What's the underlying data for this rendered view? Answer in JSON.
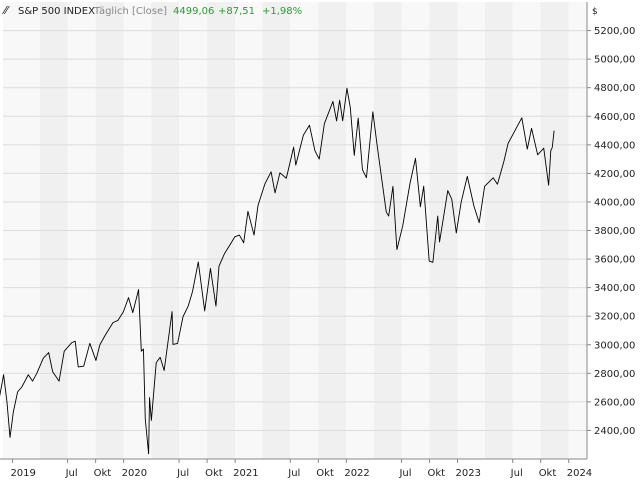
{
  "header": {
    "symbol": "S&P 500 INDEX",
    "interval": "Täglich [Close]",
    "last": "4499,06",
    "change": "+87,51",
    "change_pct": "+1,98%"
  },
  "colors": {
    "line": "#000000",
    "change_positive": "#22a22a",
    "band_dark": "#f0f0f0",
    "band_light": "#f8f8f8",
    "grid": "#dcdcdc",
    "axis": "#888888",
    "text": "#222222"
  },
  "chart_data": {
    "type": "line",
    "title": "S&P 500 INDEX",
    "subtitle": "Täglich [Close]",
    "xlabel": "",
    "ylabel": "",
    "y_unit": "$",
    "grid": true,
    "legend": "none",
    "x_range": [
      "2018-12-01",
      "2024-03-01"
    ],
    "ylim": [
      2200,
      5400
    ],
    "y_ticks": [
      2400,
      2600,
      2800,
      3000,
      3200,
      3400,
      3600,
      3800,
      4000,
      4200,
      4400,
      4600,
      4800,
      5000,
      5200
    ],
    "y_tick_labels": [
      "2400,00",
      "2600,00",
      "2800,00",
      "3000,00",
      "3200,00",
      "3400,00",
      "3600,00",
      "3800,00",
      "4000,00",
      "4200,00",
      "4400,00",
      "4600,00",
      "4800,00",
      "5000,00",
      "5200,00"
    ],
    "x_ticks": [
      {
        "date": "2019-01-01",
        "label": "2019"
      },
      {
        "date": "2019-07-01",
        "label": "Jul"
      },
      {
        "date": "2019-10-01",
        "label": "Okt"
      },
      {
        "date": "2020-01-01",
        "label": "2020"
      },
      {
        "date": "2020-07-01",
        "label": "Jul"
      },
      {
        "date": "2020-10-01",
        "label": "Okt"
      },
      {
        "date": "2021-01-01",
        "label": "2021"
      },
      {
        "date": "2021-07-01",
        "label": "Jul"
      },
      {
        "date": "2021-10-01",
        "label": "Okt"
      },
      {
        "date": "2022-01-01",
        "label": "2022"
      },
      {
        "date": "2022-07-01",
        "label": "Jul"
      },
      {
        "date": "2022-10-01",
        "label": "Okt"
      },
      {
        "date": "2023-01-01",
        "label": "2023"
      },
      {
        "date": "2023-07-01",
        "label": "Jul"
      },
      {
        "date": "2023-10-01",
        "label": "Okt"
      },
      {
        "date": "2024-01-01",
        "label": "2024"
      }
    ],
    "band_boundaries": [
      "2018-12-01",
      "2019-04-01",
      "2019-07-01",
      "2019-10-01",
      "2020-01-01",
      "2020-04-01",
      "2020-07-01",
      "2020-10-01",
      "2021-01-01",
      "2021-04-01",
      "2021-07-01",
      "2021-10-01",
      "2022-01-01",
      "2022-04-01",
      "2022-07-01",
      "2022-10-01",
      "2023-01-01",
      "2023-04-01",
      "2023-07-01",
      "2023-10-01",
      "2024-01-01",
      "2024-03-01"
    ],
    "series": [
      {
        "points": [
          [
            "2018-10-01",
            2920
          ],
          [
            "2018-10-10",
            2790
          ],
          [
            "2018-10-24",
            2660
          ],
          [
            "2018-11-05",
            2740
          ],
          [
            "2018-11-20",
            2640
          ],
          [
            "2018-12-03",
            2790
          ],
          [
            "2018-12-14",
            2600
          ],
          [
            "2018-12-24",
            2351
          ],
          [
            "2019-01-04",
            2530
          ],
          [
            "2019-01-18",
            2670
          ],
          [
            "2019-02-01",
            2705
          ],
          [
            "2019-02-22",
            2790
          ],
          [
            "2019-03-08",
            2745
          ],
          [
            "2019-03-22",
            2800
          ],
          [
            "2019-04-12",
            2905
          ],
          [
            "2019-04-30",
            2945
          ],
          [
            "2019-05-13",
            2811
          ],
          [
            "2019-06-03",
            2745
          ],
          [
            "2019-06-20",
            2955
          ],
          [
            "2019-07-15",
            3015
          ],
          [
            "2019-07-26",
            3025
          ],
          [
            "2019-08-05",
            2845
          ],
          [
            "2019-08-23",
            2850
          ],
          [
            "2019-09-12",
            3010
          ],
          [
            "2019-10-02",
            2890
          ],
          [
            "2019-10-15",
            3000
          ],
          [
            "2019-11-01",
            3065
          ],
          [
            "2019-11-27",
            3155
          ],
          [
            "2019-12-13",
            3170
          ],
          [
            "2019-12-31",
            3230
          ],
          [
            "2020-01-17",
            3330
          ],
          [
            "2020-01-31",
            3225
          ],
          [
            "2020-02-19",
            3386
          ],
          [
            "2020-02-28",
            2955
          ],
          [
            "2020-03-06",
            2970
          ],
          [
            "2020-03-12",
            2480
          ],
          [
            "2020-03-16",
            2390
          ],
          [
            "2020-03-23",
            2237
          ],
          [
            "2020-03-26",
            2630
          ],
          [
            "2020-04-01",
            2470
          ],
          [
            "2020-04-17",
            2875
          ],
          [
            "2020-04-30",
            2912
          ],
          [
            "2020-05-13",
            2820
          ],
          [
            "2020-06-08",
            3232
          ],
          [
            "2020-06-11",
            3002
          ],
          [
            "2020-06-26",
            3009
          ],
          [
            "2020-07-14",
            3197
          ],
          [
            "2020-07-31",
            3271
          ],
          [
            "2020-08-14",
            3372
          ],
          [
            "2020-09-02",
            3580
          ],
          [
            "2020-09-23",
            3237
          ],
          [
            "2020-10-12",
            3534
          ],
          [
            "2020-10-30",
            3270
          ],
          [
            "2020-11-09",
            3550
          ],
          [
            "2020-11-27",
            3638
          ],
          [
            "2020-12-18",
            3710
          ],
          [
            "2020-12-31",
            3756
          ],
          [
            "2021-01-15",
            3768
          ],
          [
            "2021-01-29",
            3714
          ],
          [
            "2021-02-12",
            3934
          ],
          [
            "2021-03-04",
            3768
          ],
          [
            "2021-03-17",
            3975
          ],
          [
            "2021-04-09",
            4128
          ],
          [
            "2021-04-29",
            4211
          ],
          [
            "2021-05-12",
            4063
          ],
          [
            "2021-05-28",
            4204
          ],
          [
            "2021-06-18",
            4166
          ],
          [
            "2021-07-12",
            4384
          ],
          [
            "2021-07-19",
            4258
          ],
          [
            "2021-08-13",
            4468
          ],
          [
            "2021-09-02",
            4537
          ],
          [
            "2021-09-20",
            4358
          ],
          [
            "2021-10-04",
            4300
          ],
          [
            "2021-10-21",
            4549
          ],
          [
            "2021-11-18",
            4704
          ],
          [
            "2021-11-30",
            4567
          ],
          [
            "2021-12-10",
            4712
          ],
          [
            "2021-12-20",
            4568
          ],
          [
            "2022-01-03",
            4796
          ],
          [
            "2022-01-14",
            4662
          ],
          [
            "2022-01-27",
            4326
          ],
          [
            "2022-02-09",
            4587
          ],
          [
            "2022-02-23",
            4225
          ],
          [
            "2022-03-08",
            4170
          ],
          [
            "2022-03-29",
            4631
          ],
          [
            "2022-04-12",
            4397
          ],
          [
            "2022-04-29",
            4132
          ],
          [
            "2022-05-12",
            3930
          ],
          [
            "2022-05-20",
            3901
          ],
          [
            "2022-06-03",
            4109
          ],
          [
            "2022-06-16",
            3667
          ],
          [
            "2022-07-05",
            3831
          ],
          [
            "2022-07-29",
            4130
          ],
          [
            "2022-08-16",
            4305
          ],
          [
            "2022-09-01",
            3966
          ],
          [
            "2022-09-12",
            4110
          ],
          [
            "2022-09-30",
            3586
          ],
          [
            "2022-10-12",
            3577
          ],
          [
            "2022-10-28",
            3901
          ],
          [
            "2022-11-03",
            3720
          ],
          [
            "2022-11-30",
            4080
          ],
          [
            "2022-12-13",
            4019
          ],
          [
            "2022-12-28",
            3783
          ],
          [
            "2023-01-13",
            3999
          ],
          [
            "2023-02-02",
            4179
          ],
          [
            "2023-02-24",
            3970
          ],
          [
            "2023-03-13",
            3855
          ],
          [
            "2023-03-31",
            4109
          ],
          [
            "2023-04-28",
            4169
          ],
          [
            "2023-05-12",
            4124
          ],
          [
            "2023-06-02",
            4282
          ],
          [
            "2023-06-16",
            4410
          ],
          [
            "2023-07-31",
            4589
          ],
          [
            "2023-08-18",
            4370
          ],
          [
            "2023-09-01",
            4515
          ],
          [
            "2023-09-21",
            4330
          ],
          [
            "2023-10-11",
            4376
          ],
          [
            "2023-10-27",
            4117
          ],
          [
            "2023-11-02",
            4318
          ],
          [
            "2023-11-03",
            4358
          ],
          [
            "2023-11-08",
            4382
          ],
          [
            "2023-11-14",
            4499
          ]
        ]
      }
    ]
  }
}
